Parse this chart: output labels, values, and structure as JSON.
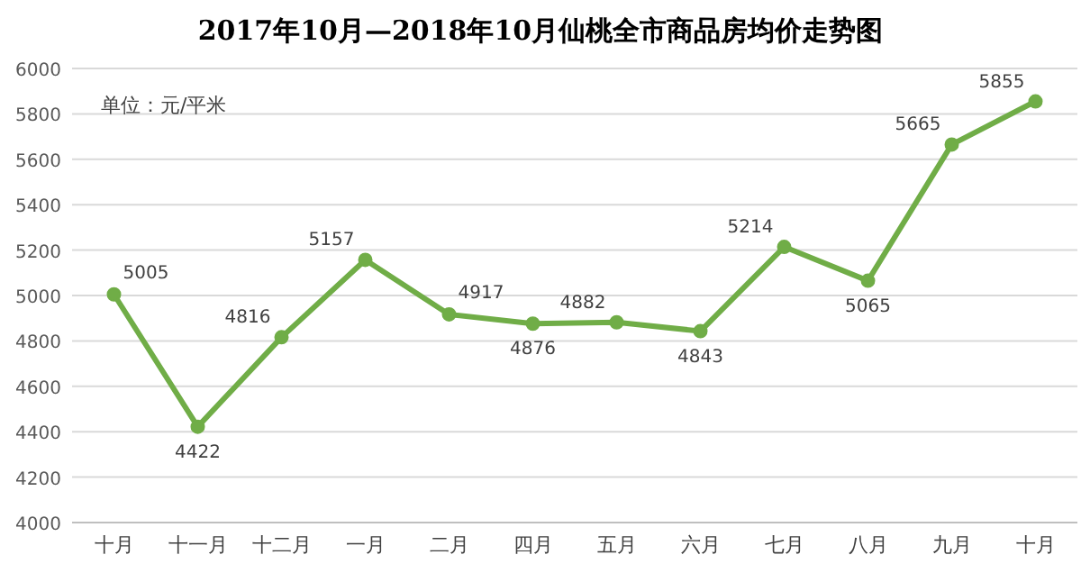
{
  "chart_data": {
    "type": "line",
    "title": "2017年10月—2018年10月仙桃全市商品房均价走势图",
    "annotations": [
      "单位：元/平米"
    ],
    "categories": [
      "十月",
      "十一月",
      "十二月",
      "一月",
      "二月",
      "四月",
      "五月",
      "六月",
      "七月",
      "八月",
      "九月",
      "十月"
    ],
    "series": [
      {
        "color": "#70ad47",
        "values": [
          5005,
          4422,
          4816,
          5157,
          4917,
          4876,
          4882,
          4843,
          5214,
          5065,
          5665,
          5855
        ]
      }
    ],
    "ylim": [
      4000,
      6000
    ],
    "yticks": [
      4000,
      4200,
      4400,
      4600,
      4800,
      5000,
      5200,
      5400,
      5600,
      5800,
      6000
    ],
    "grid": "y",
    "marker": "circle",
    "line_style": "solid",
    "data_labels": true
  }
}
